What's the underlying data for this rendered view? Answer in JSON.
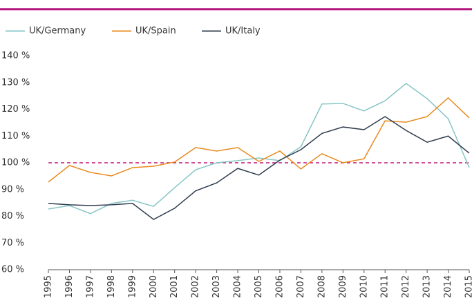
{
  "chart_data": {
    "type": "line",
    "categories": [
      "1995",
      "1996",
      "1997",
      "1998",
      "1999",
      "2000",
      "2001",
      "2002",
      "2003",
      "2004",
      "2005",
      "2006",
      "2007",
      "2008",
      "2009",
      "2010",
      "2011",
      "2012",
      "2013",
      "2014",
      "2015"
    ],
    "series": [
      {
        "name": "UK/Germany",
        "color": "#86c5c5",
        "values": [
          82.7,
          84,
          81,
          84.8,
          86,
          83.7,
          90.7,
          97.4,
          100,
          100.8,
          101.8,
          100.8,
          106,
          122,
          122.2,
          119.4,
          123.2,
          129.7,
          124,
          116.5,
          98.2
        ]
      },
      {
        "name": "UK/Spain",
        "color": "#e8891c",
        "values": [
          92.8,
          99,
          96.4,
          95.1,
          98.2,
          98.7,
          100.3,
          105.7,
          104.4,
          105.7,
          100.5,
          104.4,
          97.7,
          103.4,
          100,
          101.5,
          115.7,
          115.2,
          117.3,
          124.3,
          116.8
        ]
      },
      {
        "name": "UK/Italy",
        "color": "#2e3b4c",
        "values": [
          84.8,
          84.3,
          84,
          84.3,
          84.8,
          78.8,
          83,
          89.5,
          92.5,
          97.9,
          95.4,
          101,
          104.9,
          111,
          113.4,
          112.4,
          117.3,
          112.1,
          107.7,
          110,
          103.6
        ]
      }
    ],
    "ylim": [
      60,
      140
    ],
    "yticks": [
      {
        "value": 60,
        "label": "60 %"
      },
      {
        "value": 70,
        "label": "70 %"
      },
      {
        "value": 80,
        "label": "80 %"
      },
      {
        "value": 90,
        "label": "90 %"
      },
      {
        "value": 100,
        "label": "100 %"
      },
      {
        "value": 110,
        "label": "110 %"
      },
      {
        "value": 120,
        "label": "120 %"
      },
      {
        "value": 130,
        "label": "130 %"
      },
      {
        "value": 140,
        "label": "140 %"
      }
    ],
    "reference_line": {
      "value": 100,
      "color": "#c2187a"
    },
    "grid": false
  }
}
